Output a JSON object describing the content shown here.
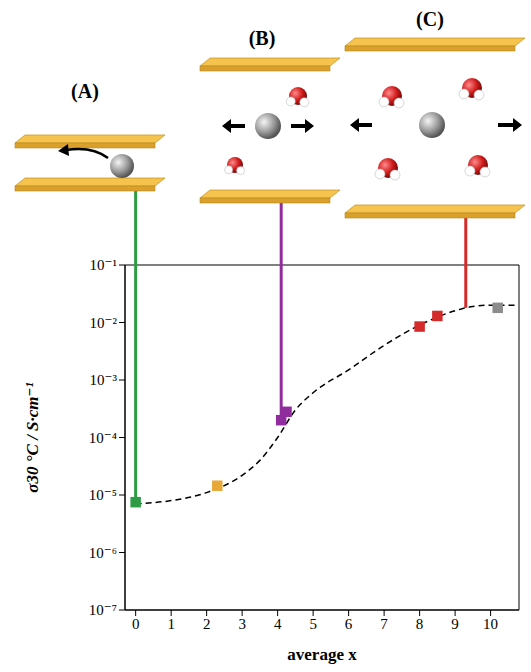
{
  "chart_data": {
    "type": "scatter",
    "x_label": "average x",
    "y_label": "σ30 °C / S·cm⁻¹",
    "log": "y",
    "xlim": [
      -0.3,
      10.8
    ],
    "xticks": [
      0,
      1,
      2,
      3,
      4,
      5,
      6,
      7,
      8,
      9,
      10
    ],
    "ylim": [
      1e-07,
      0.1
    ],
    "yticks": [
      {
        "value": 1e-07,
        "label": "10⁻⁷"
      },
      {
        "value": 1e-06,
        "label": "10⁻⁶"
      },
      {
        "value": 1e-05,
        "label": "10⁻⁵"
      },
      {
        "value": 0.0001,
        "label": "10⁻⁴"
      },
      {
        "value": 0.001,
        "label": "10⁻³"
      },
      {
        "value": 0.01,
        "label": "10⁻²"
      },
      {
        "value": 0.1,
        "label": "10⁻¹"
      }
    ],
    "series": [
      {
        "type": "line",
        "line_style": "dashed",
        "color": "#000000",
        "x": [
          0,
          1,
          2,
          3,
          3.5,
          4,
          4.5,
          5,
          6,
          7,
          8,
          9,
          9.5,
          10,
          10.7
        ],
        "values": [
          7e-06,
          8e-06,
          1.1e-05,
          2.2e-05,
          4e-05,
          0.0001,
          0.0003,
          0.0006,
          0.0015,
          0.004,
          0.009,
          0.016,
          0.019,
          0.02,
          0.02
        ]
      },
      {
        "type": "scatter",
        "marker": "square",
        "color": "#2e9b45",
        "x": [
          0
        ],
        "values": [
          7.5e-06
        ]
      },
      {
        "type": "scatter",
        "marker": "square",
        "color": "#e8a838",
        "x": [
          2.3
        ],
        "values": [
          1.45e-05
        ]
      },
      {
        "type": "scatter",
        "marker": "square",
        "color": "#912c9e",
        "x": [
          4.1,
          4.25
        ],
        "values": [
          0.0002,
          0.00028
        ]
      },
      {
        "type": "scatter",
        "marker": "square",
        "color": "#d42a2a",
        "x": [
          8.0,
          8.5
        ],
        "values": [
          0.0085,
          0.013
        ]
      },
      {
        "type": "scatter",
        "marker": "square",
        "color": "#8c8c8c",
        "x": [
          10.2
        ],
        "values": [
          0.018
        ]
      }
    ],
    "annotations": [
      {
        "label": "(A)",
        "x": 0,
        "y_from": 7.5e-06,
        "color": "#2e9b45"
      },
      {
        "label": "(B)",
        "x": 4.1,
        "y_from": 0.0002,
        "color": "#912c9e"
      },
      {
        "label": "(C)",
        "x": 9.3,
        "y_from": 0.018,
        "color": "#d42a2a"
      }
    ]
  }
}
